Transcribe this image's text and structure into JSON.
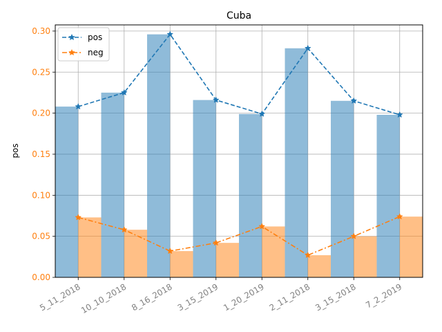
{
  "chart_data": {
    "type": "bar",
    "title": "Cuba",
    "xlabel": "",
    "ylabel": "pos",
    "ylim": [
      0,
      0.3
    ],
    "ylim_view": [
      0,
      0.3075
    ],
    "yticks": [
      "0.00",
      "0.05",
      "0.10",
      "0.15",
      "0.20",
      "0.25",
      "0.30"
    ],
    "categories": [
      "5_11_2018",
      "10_10_2018",
      "8_16_2018",
      "3_15_2019",
      "1_20_2019",
      "2_11_2018",
      "3_15_2018",
      "7_2_2019"
    ],
    "grid": true,
    "legend_position": "top-left",
    "series": [
      {
        "name": "pos",
        "values": [
          0.208,
          0.225,
          0.296,
          0.216,
          0.199,
          0.279,
          0.215,
          0.198
        ],
        "color": "#1f77b4",
        "bar_alpha": 0.5,
        "line_style": "dashed",
        "marker": "star"
      },
      {
        "name": "neg",
        "values": [
          0.073,
          0.058,
          0.032,
          0.042,
          0.062,
          0.027,
          0.05,
          0.074
        ],
        "color": "#ff7f0e",
        "bar_alpha": 0.5,
        "line_style": "dash-dot",
        "marker": "star"
      }
    ],
    "ytick_color": "#ff7f0e",
    "xtick_color": "#808080"
  }
}
